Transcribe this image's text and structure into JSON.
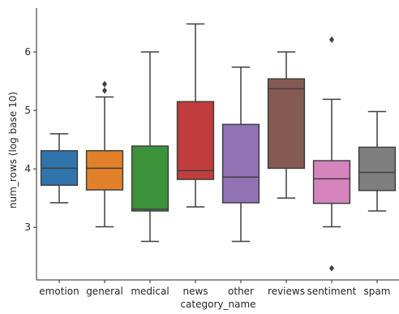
{
  "chart_data": {
    "type": "box",
    "xlabel": "category_name",
    "ylabel": "num_rows (log base 10)",
    "ylim": [
      2.1,
      6.75
    ],
    "yticks": [
      3,
      4,
      5,
      6
    ],
    "ytick_labels": [
      "3",
      "4",
      "5",
      "6"
    ],
    "grid": false,
    "legend": "none",
    "categories": [
      "emotion",
      "general",
      "medical",
      "news",
      "other",
      "reviews",
      "sentiment",
      "spam"
    ],
    "boxes": [
      {
        "category": "emotion",
        "color": "#2f75ab",
        "whislo": 3.42,
        "q1": 3.72,
        "med": 4.01,
        "q3": 4.31,
        "whishi": 4.6,
        "fliers": []
      },
      {
        "category": "general",
        "color": "#e2812a",
        "whislo": 3.01,
        "q1": 3.64,
        "med": 4.01,
        "q3": 4.31,
        "whishi": 5.23,
        "fliers": [
          5.34,
          5.45
        ]
      },
      {
        "category": "medical",
        "color": "#3b923b",
        "whislo": 2.76,
        "q1": 3.28,
        "med": 3.31,
        "q3": 4.39,
        "whishi": 6.0,
        "fliers": []
      },
      {
        "category": "news",
        "color": "#c03c3d",
        "whislo": 3.35,
        "q1": 3.82,
        "med": 3.97,
        "q3": 5.15,
        "whishi": 6.48,
        "fliers": []
      },
      {
        "category": "other",
        "color": "#9271b5",
        "whislo": 2.76,
        "q1": 3.42,
        "med": 3.86,
        "q3": 4.76,
        "whishi": 5.74,
        "fliers": []
      },
      {
        "category": "reviews",
        "color": "#845a52",
        "whislo": 3.5,
        "q1": 4.01,
        "med": 5.37,
        "q3": 5.54,
        "whishi": 6.0,
        "fliers": []
      },
      {
        "category": "sentiment",
        "color": "#d584bd",
        "whislo": 3.01,
        "q1": 3.41,
        "med": 3.83,
        "q3": 4.14,
        "whishi": 5.19,
        "fliers": [
          6.21,
          2.3
        ]
      },
      {
        "category": "spam",
        "color": "#7f7f7f",
        "whislo": 3.28,
        "q1": 3.63,
        "med": 3.94,
        "q3": 4.37,
        "whishi": 4.98,
        "fliers": []
      }
    ]
  }
}
